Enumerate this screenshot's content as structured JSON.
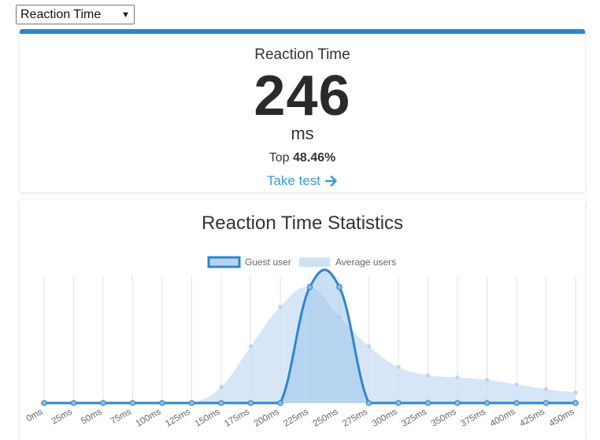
{
  "test_select": {
    "value": "Reaction Time"
  },
  "score": {
    "title": "Reaction Time",
    "value": "246",
    "unit": "ms",
    "rank_prefix": "Top",
    "rank_value": "48.46%",
    "take_test_label": "Take test"
  },
  "stats": {
    "title": "Reaction Time Statistics"
  },
  "colors": {
    "accent": "#2b85cf",
    "guest_line": "#2f86cc",
    "average_fill": "#cfe2f4",
    "link": "#3a9ad9"
  },
  "chart_data": {
    "type": "line",
    "categories": [
      "0ms",
      "25ms",
      "50ms",
      "75ms",
      "100ms",
      "125ms",
      "150ms",
      "175ms",
      "200ms",
      "225ms",
      "250ms",
      "275ms",
      "300ms",
      "325ms",
      "350ms",
      "375ms",
      "400ms",
      "425ms",
      "450ms"
    ],
    "series": [
      {
        "name": "Guest user",
        "style": "line",
        "values": [
          0,
          0,
          0,
          0,
          0,
          0,
          0,
          0,
          0,
          100,
          100,
          0,
          0,
          0,
          0,
          0,
          0,
          0,
          0
        ]
      },
      {
        "name": "Average users",
        "style": "area",
        "values": [
          0,
          0,
          0,
          0,
          0,
          0,
          14,
          49,
          83,
          100,
          74,
          49,
          31,
          24,
          22,
          20,
          16,
          12,
          9
        ]
      }
    ],
    "legend": "top-center",
    "grid": {
      "vertical": true,
      "horizontal": false
    },
    "ylim": [
      0,
      110
    ]
  }
}
